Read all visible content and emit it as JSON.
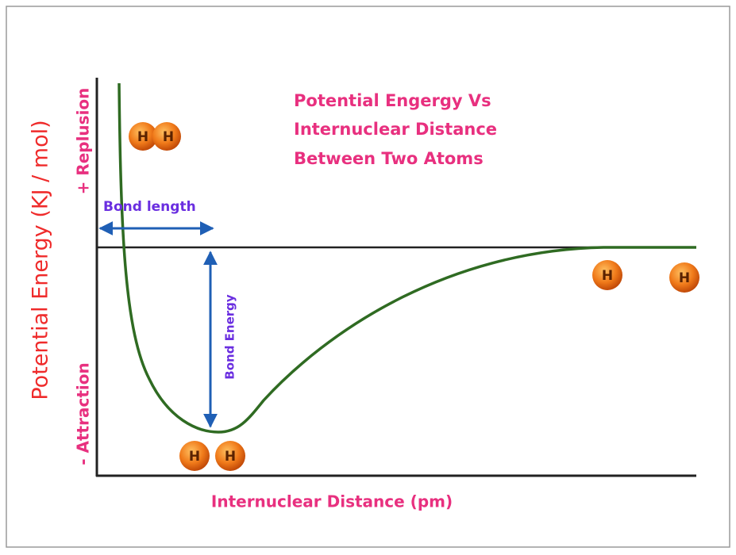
{
  "title": {
    "lines": [
      "Potential Engergy Vs",
      "Internuclear Distance",
      "Between Two Atoms"
    ]
  },
  "y_axis": {
    "label": "Potential Energy (KJ / mol)",
    "top": "+ Replusion",
    "bottom": "- Attraction"
  },
  "x_axis": {
    "label": "Internuclear Distance (pm)"
  },
  "annotations": {
    "bond_length": "Bond length",
    "bond_energy": "Bond Energy"
  },
  "atoms": {
    "labels": [
      "H",
      "H",
      "H",
      "H",
      "H",
      "H"
    ]
  }
}
